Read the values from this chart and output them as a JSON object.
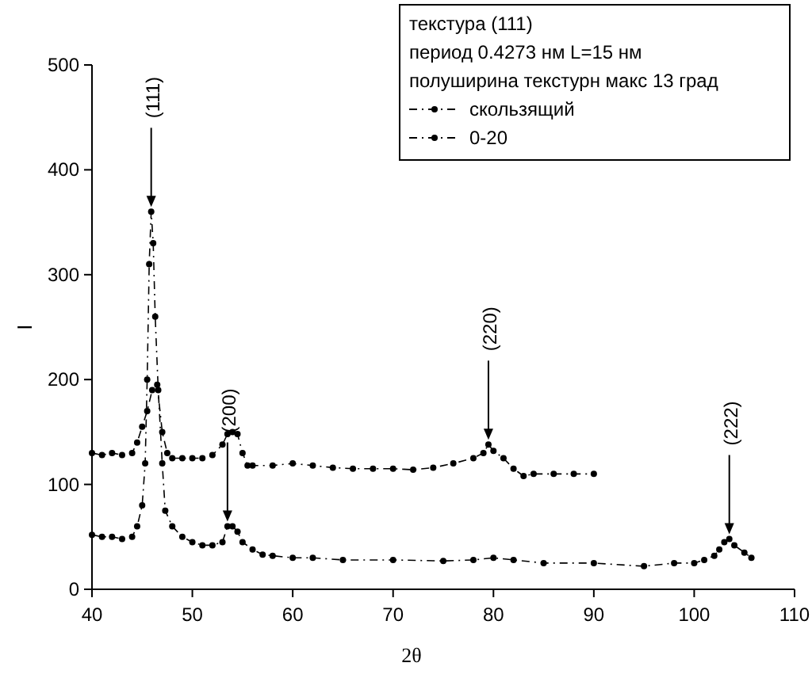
{
  "chart_data": {
    "type": "line",
    "xlabel": "2θ",
    "ylabel": "I",
    "legend_title": "текстура (111)",
    "annotations": [
      "период 0.4273 нм  L=15 нм",
      "полуширина текстурн макс 13 град",
      {
        "text": "(111)",
        "x": 45.9,
        "y": 360
      },
      {
        "text": "(200)",
        "x": 53.5,
        "y": 60
      },
      {
        "text": "(220)",
        "x": 79.5,
        "y": 138
      },
      {
        "text": "(222)",
        "x": 103.5,
        "y": 48
      }
    ],
    "series": [
      {
        "name": "скользящий",
        "color": "#000000",
        "x": [
          40,
          41,
          42,
          43,
          44,
          44.5,
          45,
          45.5,
          46,
          46.5,
          47,
          47.5,
          48,
          49,
          50,
          51,
          52,
          53,
          53.5,
          54,
          54.5,
          55,
          55.5,
          56,
          58,
          60,
          62,
          64,
          66,
          68,
          70,
          72,
          74,
          76,
          78,
          79,
          79.5,
          80,
          81,
          82,
          83,
          84,
          86,
          88,
          90
        ],
        "values": [
          130,
          128,
          130,
          128,
          130,
          140,
          155,
          170,
          190,
          195,
          150,
          130,
          125,
          125,
          125,
          125,
          128,
          138,
          148,
          150,
          148,
          130,
          118,
          118,
          118,
          120,
          118,
          116,
          115,
          115,
          115,
          114,
          116,
          120,
          125,
          130,
          138,
          132,
          125,
          115,
          108,
          110,
          110,
          110,
          110
        ]
      },
      {
        "name": "0-20",
        "color": "#000000",
        "x": [
          40,
          41,
          42,
          43,
          44,
          44.5,
          45,
          45.3,
          45.5,
          45.7,
          45.9,
          46.1,
          46.3,
          46.6,
          47,
          47.3,
          48,
          49,
          50,
          51,
          52,
          53,
          53.5,
          54,
          54.5,
          55,
          56,
          57,
          58,
          60,
          62,
          65,
          70,
          75,
          78,
          80,
          82,
          85,
          90,
          95,
          98,
          100,
          101,
          102,
          102.5,
          103,
          103.5,
          104,
          105,
          105.7
        ],
        "values": [
          52,
          50,
          50,
          48,
          50,
          60,
          80,
          120,
          200,
          310,
          360,
          330,
          260,
          190,
          120,
          75,
          60,
          50,
          45,
          42,
          42,
          45,
          60,
          60,
          55,
          45,
          38,
          33,
          32,
          30,
          30,
          28,
          28,
          27,
          28,
          30,
          28,
          25,
          25,
          22,
          25,
          25,
          28,
          32,
          38,
          45,
          48,
          42,
          35,
          30
        ]
      }
    ],
    "xlim": [
      40,
      110
    ],
    "xticks": [
      40,
      50,
      60,
      70,
      80,
      90,
      100,
      110
    ],
    "ylim": [
      0,
      500
    ],
    "yticks": [
      0,
      100,
      200,
      300,
      400,
      500
    ],
    "grid": false,
    "legend": "top right",
    "marker": "circle",
    "line_style": "dashed"
  }
}
